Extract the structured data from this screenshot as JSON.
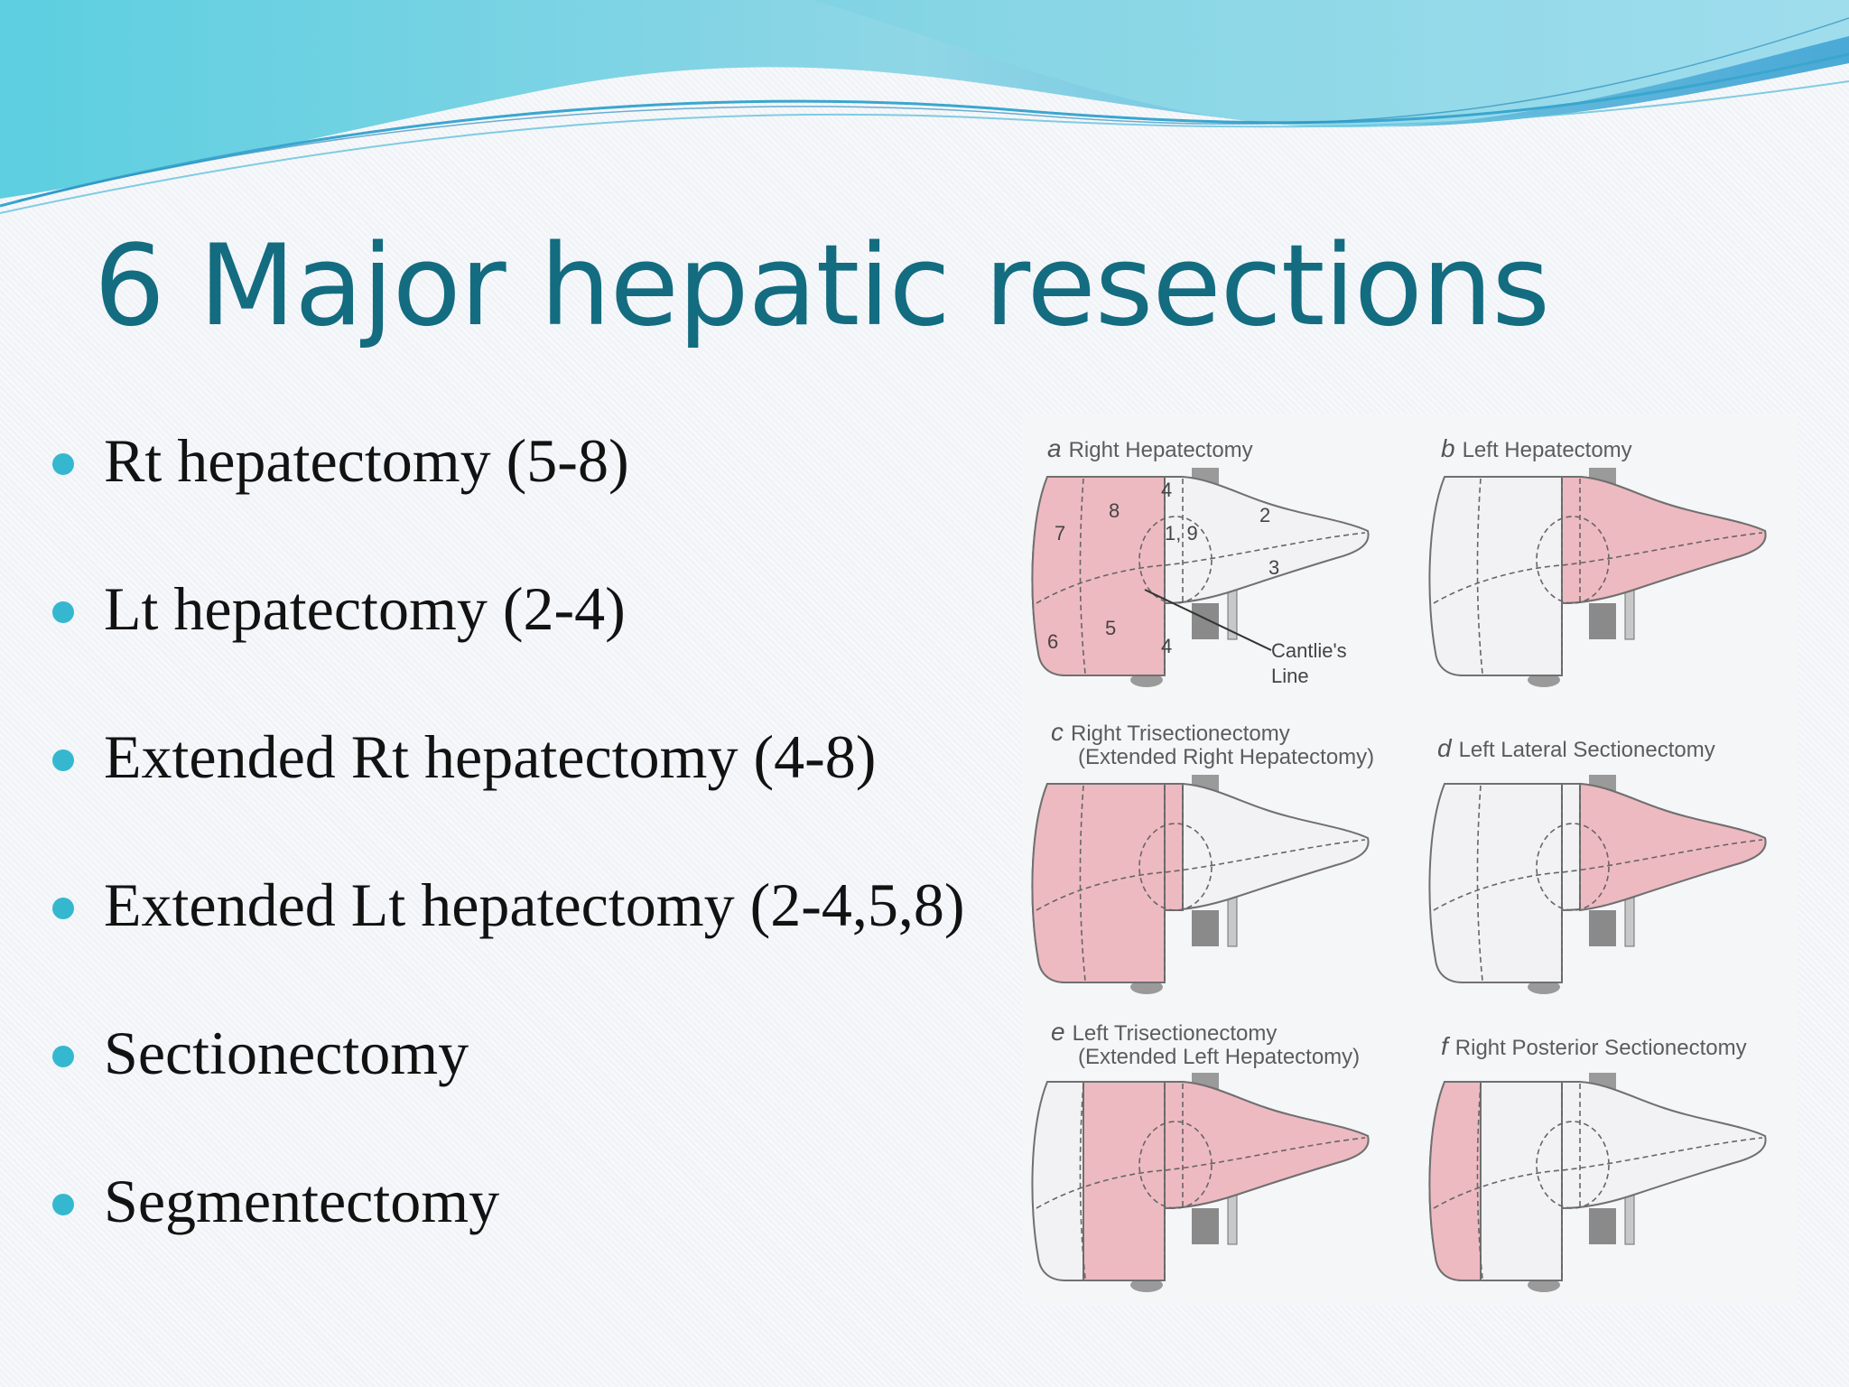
{
  "slide": {
    "title": "6 Major hepatic resections",
    "bullets": [
      "Rt hepatectomy (5-8)",
      "Lt hepatectomy (2-4)",
      "Extended Rt hepatectomy (4-8)",
      "Extended Lt hepatectomy (2-4,5,8)",
      "Sectionectomy",
      "Segmentectomy"
    ]
  },
  "colors": {
    "title": "#136c80",
    "bullet_dot": "#35b8cf",
    "resected": "#eebac1",
    "remnant": "#f2f2f4",
    "outline": "#707070"
  },
  "figure": {
    "panels": [
      {
        "letter": "a",
        "label": "Right Hepatectomy",
        "sublabel": "",
        "highlight": "right",
        "segment_labels": [
          "8",
          "7",
          "6",
          "5",
          "4",
          "1, 9",
          "4",
          "2",
          "3"
        ],
        "annotation": [
          "Cantlie's",
          "Line"
        ]
      },
      {
        "letter": "b",
        "label": "Left Hepatectomy",
        "sublabel": "",
        "highlight": "left"
      },
      {
        "letter": "c",
        "label": "Right Trisectionectomy",
        "sublabel": "(Extended Right Hepatectomy)",
        "highlight": "right-tri"
      },
      {
        "letter": "d",
        "label": "Left Lateral Sectionectomy",
        "sublabel": "",
        "highlight": "left-lateral"
      },
      {
        "letter": "e",
        "label": "Left Trisectionectomy",
        "sublabel": "(Extended Left Hepatectomy)",
        "highlight": "left-tri"
      },
      {
        "letter": "f",
        "label": "Right Posterior Sectionectomy",
        "sublabel": "",
        "highlight": "right-posterior"
      }
    ]
  }
}
